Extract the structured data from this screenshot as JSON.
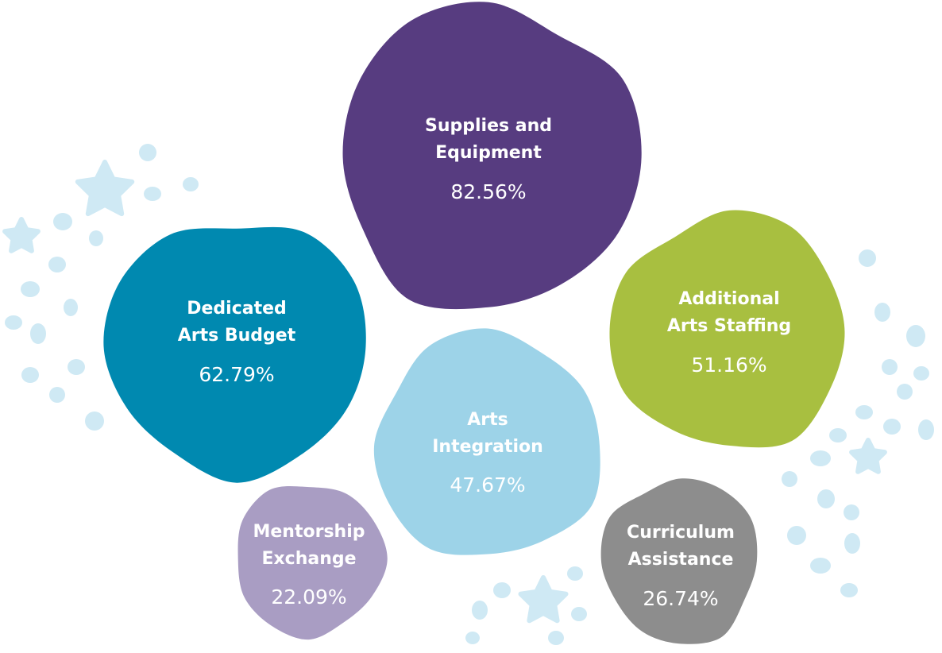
{
  "chart_data": {
    "type": "bubble",
    "title": "",
    "items": [
      {
        "name": "supplies-and-equipment",
        "label_lines": [
          "Supplies and",
          "Equipment"
        ],
        "value_label": "82.56%",
        "value": 82.56,
        "color": "#573c80"
      },
      {
        "name": "dedicated-arts-budget",
        "label_lines": [
          "Dedicated",
          "Arts Budget"
        ],
        "value_label": "62.79%",
        "value": 62.79,
        "color": "#0089b0"
      },
      {
        "name": "additional-arts-staffing",
        "label_lines": [
          "Additional",
          "Arts Staffing"
        ],
        "value_label": "51.16%",
        "value": 51.16,
        "color": "#a8bf40"
      },
      {
        "name": "arts-integration",
        "label_lines": [
          "Arts",
          "Integration"
        ],
        "value_label": "47.67%",
        "value": 47.67,
        "color": "#9dd3e8"
      },
      {
        "name": "mentorship-exchange",
        "label_lines": [
          "Mentorship",
          "Exchange"
        ],
        "value_label": "22.09%",
        "value": 22.09,
        "color": "#a99dc3"
      },
      {
        "name": "curriculum-assistance",
        "label_lines": [
          "Curriculum",
          "Assistance"
        ],
        "value_label": "26.74%",
        "value": 26.74,
        "color": "#8d8d8d"
      }
    ],
    "decoration_color": "#cfe9f4"
  }
}
